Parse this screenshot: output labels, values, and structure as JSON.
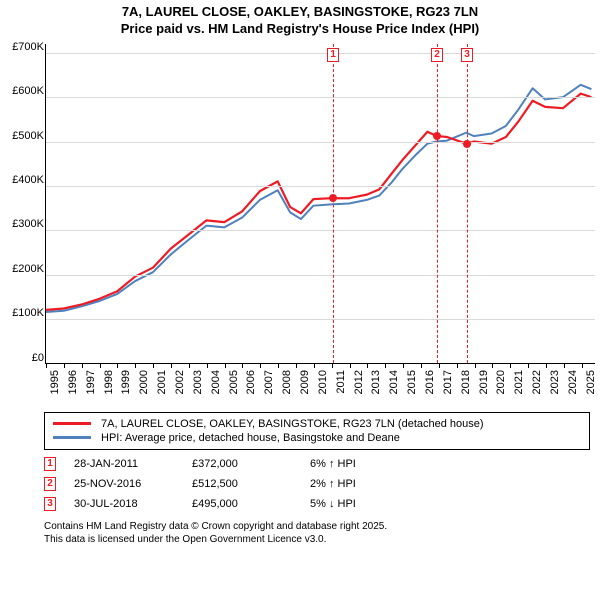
{
  "title": {
    "line1": "7A, LAUREL CLOSE, OAKLEY, BASINGSTOKE, RG23 7LN",
    "line2": "Price paid vs. HM Land Registry's House Price Index (HPI)"
  },
  "chart": {
    "type": "line",
    "background_color": "#ffffff",
    "grid_color": "#d9d9d9",
    "axis_color": "#000000",
    "label_fontsize": 11,
    "x": {
      "min": 1995,
      "max": 2025.8,
      "ticks": [
        1995,
        1996,
        1997,
        1998,
        1999,
        2000,
        2001,
        2002,
        2003,
        2004,
        2005,
        2006,
        2007,
        2008,
        2009,
        2010,
        2011,
        2012,
        2013,
        2014,
        2015,
        2016,
        2017,
        2018,
        2019,
        2020,
        2021,
        2022,
        2023,
        2024,
        2025
      ]
    },
    "y": {
      "min": 0,
      "max": 720000,
      "ticks": [
        {
          "v": 0,
          "label": "£0"
        },
        {
          "v": 100000,
          "label": "£100K"
        },
        {
          "v": 200000,
          "label": "£200K"
        },
        {
          "v": 300000,
          "label": "£300K"
        },
        {
          "v": 400000,
          "label": "£400K"
        },
        {
          "v": 500000,
          "label": "£500K"
        },
        {
          "v": 600000,
          "label": "£600K"
        },
        {
          "v": 700000,
          "label": "£700K"
        }
      ]
    },
    "series": [
      {
        "id": "property",
        "color": "#ed1c24",
        "line_width": 2.2,
        "points": [
          [
            1995,
            120000
          ],
          [
            1996,
            123000
          ],
          [
            1997,
            132000
          ],
          [
            1998,
            145000
          ],
          [
            1999,
            162000
          ],
          [
            2000,
            195000
          ],
          [
            2001,
            215000
          ],
          [
            2002,
            258000
          ],
          [
            2003,
            290000
          ],
          [
            2004,
            322000
          ],
          [
            2005,
            318000
          ],
          [
            2006,
            342000
          ],
          [
            2007,
            388000
          ],
          [
            2008,
            410000
          ],
          [
            2008.7,
            352000
          ],
          [
            2009.3,
            338000
          ],
          [
            2010,
            370000
          ],
          [
            2011,
            372000
          ],
          [
            2012,
            372000
          ],
          [
            2013,
            380000
          ],
          [
            2013.7,
            392000
          ],
          [
            2014.4,
            428000
          ],
          [
            2015,
            458000
          ],
          [
            2015.7,
            490000
          ],
          [
            2016.4,
            522000
          ],
          [
            2016.9,
            512500
          ],
          [
            2017.5,
            510000
          ],
          [
            2018.58,
            495000
          ],
          [
            2019,
            500000
          ],
          [
            2020,
            495000
          ],
          [
            2020.8,
            510000
          ],
          [
            2021.5,
            545000
          ],
          [
            2022.3,
            592000
          ],
          [
            2023,
            578000
          ],
          [
            2024,
            575000
          ],
          [
            2025,
            608000
          ],
          [
            2025.6,
            600000
          ]
        ]
      },
      {
        "id": "hpi",
        "color": "#4f81bd",
        "line_width": 2.0,
        "points": [
          [
            1995,
            115000
          ],
          [
            1996,
            118000
          ],
          [
            1997,
            128000
          ],
          [
            1998,
            140000
          ],
          [
            1999,
            156000
          ],
          [
            2000,
            185000
          ],
          [
            2001,
            205000
          ],
          [
            2002,
            245000
          ],
          [
            2003,
            278000
          ],
          [
            2004,
            310000
          ],
          [
            2005,
            306000
          ],
          [
            2006,
            328000
          ],
          [
            2007,
            368000
          ],
          [
            2008,
            390000
          ],
          [
            2008.7,
            340000
          ],
          [
            2009.3,
            325000
          ],
          [
            2010,
            355000
          ],
          [
            2011,
            358000
          ],
          [
            2012,
            360000
          ],
          [
            2013,
            368000
          ],
          [
            2013.7,
            378000
          ],
          [
            2014.4,
            408000
          ],
          [
            2015,
            438000
          ],
          [
            2015.7,
            468000
          ],
          [
            2016.4,
            495000
          ],
          [
            2016.9,
            500000
          ],
          [
            2017.5,
            502000
          ],
          [
            2018.58,
            520000
          ],
          [
            2019,
            512000
          ],
          [
            2020,
            518000
          ],
          [
            2020.8,
            535000
          ],
          [
            2021.5,
            572000
          ],
          [
            2022.3,
            620000
          ],
          [
            2023,
            595000
          ],
          [
            2024,
            600000
          ],
          [
            2025,
            628000
          ],
          [
            2025.6,
            618000
          ]
        ]
      }
    ],
    "sale_points": [
      {
        "x": 2011.08,
        "y": 372000,
        "color": "#ed1c24"
      },
      {
        "x": 2016.9,
        "y": 512500,
        "color": "#ed1c24"
      },
      {
        "x": 2018.58,
        "y": 495000,
        "color": "#ed1c24"
      }
    ],
    "markers": [
      {
        "idx": "1",
        "x": 2011.08,
        "color": "#ed1c24"
      },
      {
        "idx": "2",
        "x": 2016.9,
        "color": "#ed1c24"
      },
      {
        "idx": "3",
        "x": 2018.58,
        "color": "#ed1c24"
      }
    ]
  },
  "legend": {
    "items": [
      {
        "color": "#ed1c24",
        "label": "7A, LAUREL CLOSE, OAKLEY, BASINGSTOKE, RG23 7LN (detached house)"
      },
      {
        "color": "#4f81bd",
        "label": "HPI: Average price, detached house, Basingstoke and Deane"
      }
    ]
  },
  "events": [
    {
      "idx": "1",
      "color": "#ed1c24",
      "date": "28-JAN-2011",
      "price": "£372,000",
      "pct": "6% ↑ HPI"
    },
    {
      "idx": "2",
      "color": "#ed1c24",
      "date": "25-NOV-2016",
      "price": "£512,500",
      "pct": "2% ↑ HPI"
    },
    {
      "idx": "3",
      "color": "#ed1c24",
      "date": "30-JUL-2018",
      "price": "£495,000",
      "pct": "5% ↓ HPI"
    }
  ],
  "footer": {
    "line1": "Contains HM Land Registry data © Crown copyright and database right 2025.",
    "line2": "This data is licensed under the Open Government Licence v3.0."
  }
}
